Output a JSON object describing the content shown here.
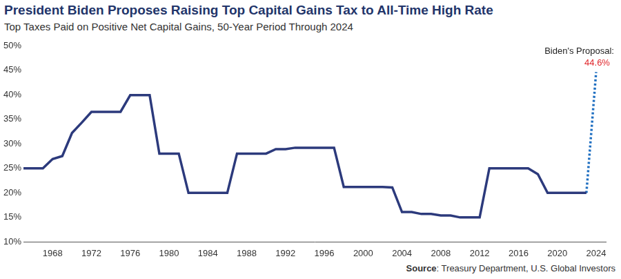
{
  "chart_data": {
    "type": "line",
    "title": "President Biden Proposes Raising Top Capital Gains Tax to All-Time High Rate",
    "subtitle": "Top Taxes Paid on Positive Net Capital Gains, 50-Year Period Through 2024",
    "annotation": "Biden's Proposal:",
    "source_label": "Source",
    "source": ": Treasury Department, U.S. Global Investors",
    "series": [
      {
        "color": "#2c3a7c",
        "line_style": "solid",
        "x": [
          1965,
          1966,
          1967,
          1968,
          1969,
          1970,
          1971,
          1972,
          1973,
          1974,
          1975,
          1976,
          1977,
          1978,
          1979,
          1980,
          1981,
          1982,
          1983,
          1984,
          1985,
          1986,
          1987,
          1988,
          1989,
          1990,
          1991,
          1992,
          1993,
          1994,
          1995,
          1996,
          1997,
          1998,
          1999,
          2000,
          2001,
          2002,
          2003,
          2004,
          2005,
          2006,
          2007,
          2008,
          2009,
          2010,
          2011,
          2012,
          2013,
          2014,
          2015,
          2016,
          2017,
          2018,
          2019,
          2020,
          2021,
          2022,
          2023
        ],
        "values": [
          25,
          25,
          25,
          26.9,
          27.5,
          32.2,
          34.3,
          36.5,
          36.5,
          36.5,
          36.5,
          39.9,
          39.9,
          39.9,
          28,
          28,
          28,
          20,
          20,
          20,
          20,
          20,
          28,
          28,
          28,
          28,
          28.9,
          28.9,
          29.2,
          29.2,
          29.2,
          29.2,
          29.2,
          21.2,
          21.2,
          21.2,
          21.2,
          21.2,
          21.1,
          16.1,
          16.1,
          15.7,
          15.7,
          15.4,
          15.4,
          15,
          15,
          15,
          25,
          25,
          25,
          25,
          25,
          23.8,
          20,
          20,
          20,
          20,
          20
        ]
      },
      {
        "color": "#1f6fc1",
        "line_style": "dotted",
        "x": [
          2023,
          2024
        ],
        "values": [
          20,
          44.6
        ],
        "value_labels": [
          null,
          "44.6%"
        ]
      }
    ],
    "xlim": [
      1965,
      2025
    ],
    "xticks": [
      1968,
      1972,
      1976,
      1980,
      1984,
      1988,
      1992,
      1996,
      2000,
      2004,
      2008,
      2012,
      2016,
      2020,
      2024
    ],
    "ylim": [
      10,
      50
    ],
    "yticks": [
      {
        "value": 10,
        "label": "10%"
      },
      {
        "value": 15,
        "label": "15%"
      },
      {
        "value": 20,
        "label": "20%"
      },
      {
        "value": 25,
        "label": "25%"
      },
      {
        "value": 30,
        "label": "30%"
      },
      {
        "value": 35,
        "label": "35%"
      },
      {
        "value": 40,
        "label": "40%"
      },
      {
        "value": 45,
        "label": "45%"
      },
      {
        "value": 50,
        "label": "50%"
      }
    ],
    "grid": false
  }
}
